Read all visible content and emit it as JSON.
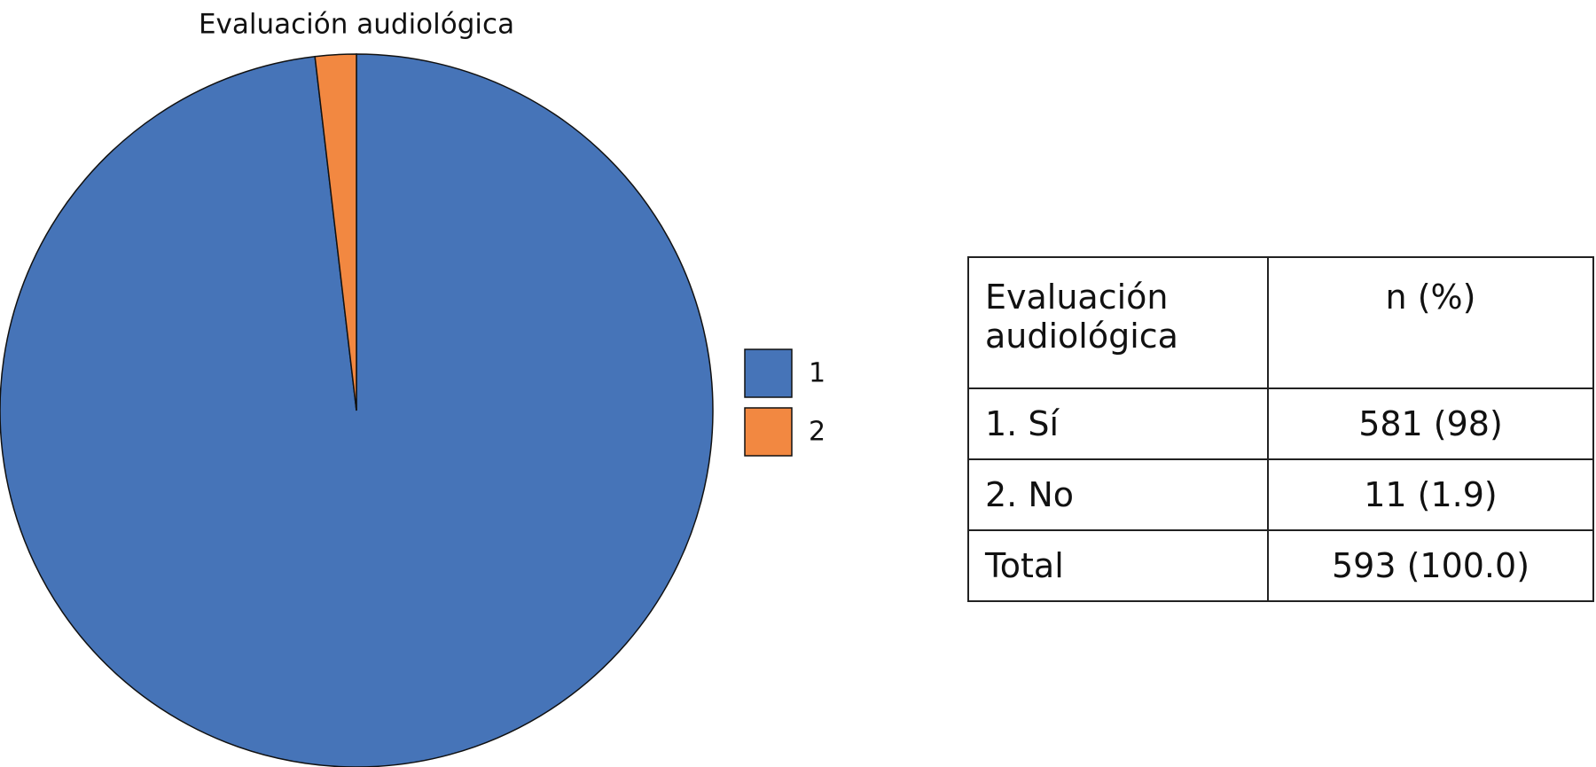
{
  "chart_data": {
    "type": "pie",
    "title": "Evaluación audiológica",
    "categories": [
      "1",
      "2"
    ],
    "values": [
      581,
      11
    ],
    "colors": [
      "#4674b8",
      "#f28841"
    ]
  },
  "table": {
    "rows": [
      [
        "Evaluación audiológica",
        "n (%)"
      ],
      [
        "1. Sí",
        "581 (98)"
      ],
      [
        "2. No",
        "11 (1.9)"
      ],
      [
        "Total",
        "593 (100.0)"
      ]
    ]
  }
}
